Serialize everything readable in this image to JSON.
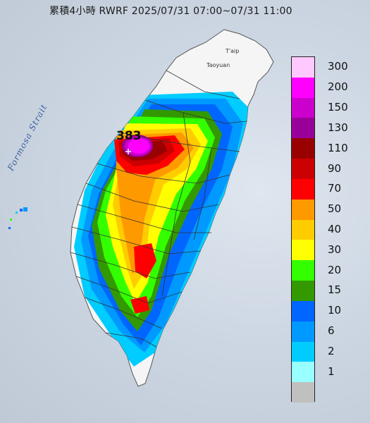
{
  "title": "累積4小時 RWRF 2025/07/31 07:00~07/31 11:00",
  "max_value_label": "383",
  "labels": {
    "sea": "Formosa Strait",
    "city_taipei": "T'aip",
    "city_taoyuan": "Taoyuan"
  },
  "legend": [
    {
      "label": "300",
      "color": "#ffc8ff"
    },
    {
      "label": "200",
      "color": "#ff00ff"
    },
    {
      "label": "150",
      "color": "#cc00cc"
    },
    {
      "label": "130",
      "color": "#990099"
    },
    {
      "label": "110",
      "color": "#990000"
    },
    {
      "label": "90",
      "color": "#cc0000"
    },
    {
      "label": "70",
      "color": "#ff0000"
    },
    {
      "label": "50",
      "color": "#ff9900"
    },
    {
      "label": "40",
      "color": "#ffcc00"
    },
    {
      "label": "30",
      "color": "#ffff00"
    },
    {
      "label": "20",
      "color": "#33ff00"
    },
    {
      "label": "15",
      "color": "#339900"
    },
    {
      "label": "10",
      "color": "#0066ff"
    },
    {
      "label": "6",
      "color": "#0099ff"
    },
    {
      "label": "2",
      "color": "#00ccff"
    },
    {
      "label": "1",
      "color": "#99ffff"
    },
    {
      "label": "",
      "color": "#c0c0c0"
    }
  ]
}
